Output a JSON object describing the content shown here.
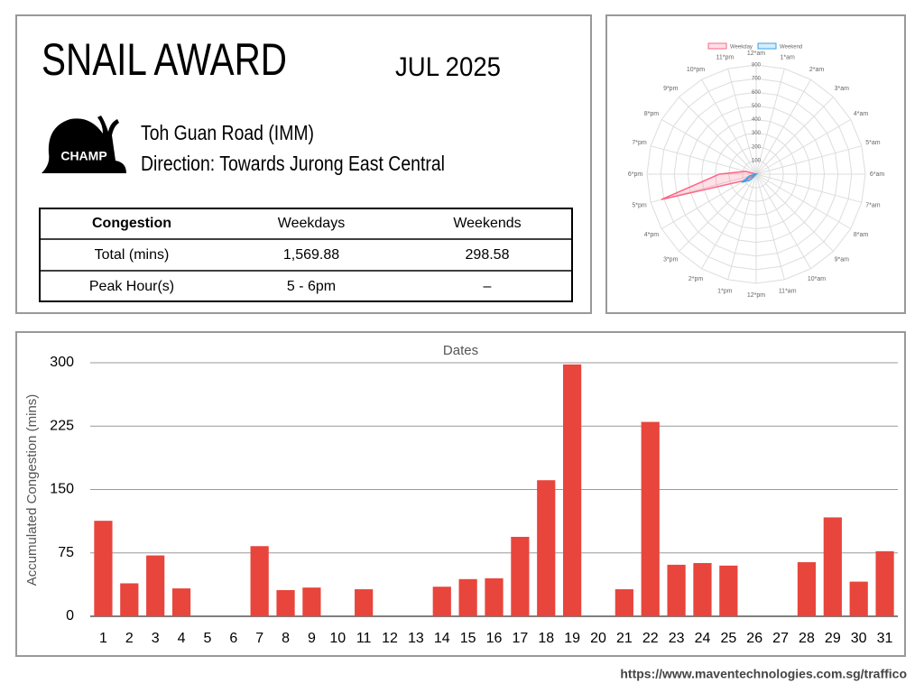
{
  "header": {
    "title": "SNAIL AWARD",
    "period": "JUL 2025",
    "badge": "CHAMP",
    "road": "Toh Guan Road (IMM)",
    "direction": "Direction: Towards Jurong East Central"
  },
  "table": {
    "header": [
      "Congestion",
      "Weekdays",
      "Weekends"
    ],
    "rows": [
      [
        "Total (mins)",
        "1,569.88",
        "298.58"
      ],
      [
        "Peak Hour(s)",
        "5 - 6pm",
        "–"
      ]
    ]
  },
  "chart_data": [
    {
      "type": "radar",
      "categories": [
        "12*am",
        "1*am",
        "2*am",
        "3*am",
        "4*am",
        "5*am",
        "6*am",
        "7*am",
        "8*am",
        "9*am",
        "10*am",
        "11*am",
        "12*pm",
        "1*pm",
        "2*pm",
        "3*pm",
        "4*pm",
        "5*pm",
        "6*pm",
        "7*pm",
        "8*pm",
        "9*pm",
        "10*pm",
        "11*pm"
      ],
      "series": [
        {
          "name": "Weekday",
          "color": "#ff6384",
          "values": [
            0,
            0,
            0,
            0,
            0,
            0,
            0,
            0,
            0,
            0,
            0,
            0,
            0,
            0,
            0,
            0,
            90,
            720,
            270,
            80,
            0,
            0,
            0,
            0
          ]
        },
        {
          "name": "Weekend",
          "color": "#36a2eb",
          "values": [
            0,
            0,
            0,
            0,
            0,
            0,
            0,
            0,
            0,
            0,
            0,
            0,
            0,
            0,
            0,
            60,
            120,
            50,
            0,
            0,
            0,
            0,
            0,
            0
          ]
        }
      ],
      "rlim": [
        0,
        800
      ],
      "rticks": [
        100,
        200,
        300,
        400,
        500,
        600,
        700,
        800
      ],
      "grid": true,
      "legend": "top"
    },
    {
      "type": "bar",
      "xlabel": "Dates",
      "ylabel": "Accumulated Congestion (mins)",
      "categories": [
        "1",
        "2",
        "3",
        "4",
        "5",
        "6",
        "7",
        "8",
        "9",
        "10",
        "11",
        "12",
        "13",
        "14",
        "15",
        "16",
        "17",
        "18",
        "19",
        "20",
        "21",
        "22",
        "23",
        "24",
        "25",
        "26",
        "27",
        "28",
        "29",
        "30",
        "31"
      ],
      "values": [
        113,
        39,
        72,
        33,
        0,
        0,
        83,
        31,
        34,
        0,
        32,
        0,
        0,
        35,
        44,
        45,
        94,
        161,
        298,
        0,
        32,
        230,
        61,
        63,
        60,
        0,
        0,
        64,
        117,
        41,
        77
      ],
      "color": "#e8453c",
      "ylim": [
        0,
        300
      ],
      "yticks": [
        0,
        75,
        150,
        225,
        300
      ],
      "grid": true
    }
  ],
  "footer": {
    "url": "https://www.maventechnologies.com.sg/traffico"
  }
}
